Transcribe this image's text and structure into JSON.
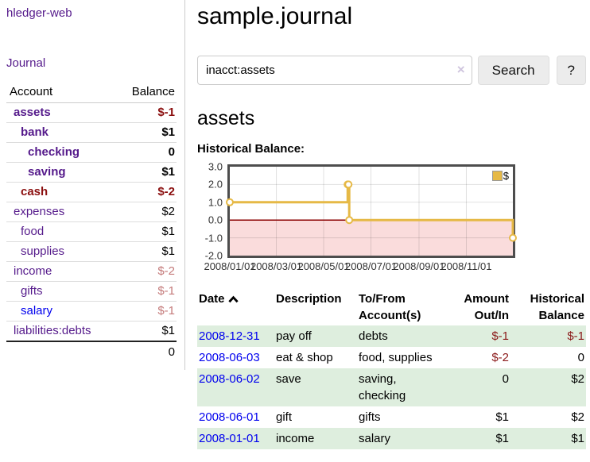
{
  "app": {
    "brand": "hledger-web",
    "nav_journal": "Journal"
  },
  "colors": {
    "link_visited_purple": "#551a8b",
    "link_blue": "#0000ee",
    "negative_strong": "#8b0f0f",
    "negative_soft": "#c47a7a",
    "row_green": "#deeede",
    "series_gold": "#e6b946",
    "chart_negative_bg": "#fadcdc",
    "zero_line": "#8b0000"
  },
  "sidebar": {
    "header": {
      "account": "Account",
      "balance": "Balance"
    },
    "accounts": [
      {
        "name": "assets",
        "depth": 1,
        "balance": "$-1",
        "bold": true,
        "name_tone": "purple",
        "balance_tone": "negative"
      },
      {
        "name": "bank",
        "depth": 2,
        "balance": "$1",
        "bold": true,
        "name_tone": "purple",
        "balance_tone": "positive"
      },
      {
        "name": "checking",
        "depth": 3,
        "balance": "0",
        "bold": true,
        "name_tone": "purple",
        "balance_tone": "positive"
      },
      {
        "name": "saving",
        "depth": 3,
        "balance": "$1",
        "bold": true,
        "name_tone": "purple",
        "balance_tone": "positive"
      },
      {
        "name": "cash",
        "depth": 2,
        "balance": "$-2",
        "bold": true,
        "name_tone": "maroon",
        "balance_tone": "negative"
      },
      {
        "name": "expenses",
        "depth": 1,
        "balance": "$2",
        "bold": false,
        "name_tone": "purple",
        "balance_tone": "positive"
      },
      {
        "name": "food",
        "depth": 2,
        "balance": "$1",
        "bold": false,
        "name_tone": "purple",
        "balance_tone": "positive"
      },
      {
        "name": "supplies",
        "depth": 2,
        "balance": "$1",
        "bold": false,
        "name_tone": "purple",
        "balance_tone": "positive"
      },
      {
        "name": "income",
        "depth": 1,
        "balance": "$-2",
        "bold": false,
        "name_tone": "purple",
        "balance_tone": "negative-soft"
      },
      {
        "name": "gifts",
        "depth": 2,
        "balance": "$-1",
        "bold": false,
        "name_tone": "purple",
        "balance_tone": "negative-soft"
      },
      {
        "name": "salary",
        "depth": 2,
        "balance": "$-1",
        "bold": false,
        "name_tone": "blue",
        "balance_tone": "negative-soft"
      },
      {
        "name": "liabilities:debts",
        "depth": 1,
        "balance": "$1",
        "bold": false,
        "name_tone": "purple",
        "balance_tone": "positive"
      }
    ],
    "total": "0"
  },
  "main": {
    "title": "sample.journal",
    "search": {
      "value": "inacct:assets",
      "clear_icon": "×",
      "button_label": "Search",
      "help_label": "?"
    },
    "account_heading": "assets"
  },
  "chart_data": {
    "type": "line",
    "step": true,
    "title": "Historical Balance:",
    "legend": [
      {
        "label": "$",
        "color": "#e6b946"
      }
    ],
    "legend_position": "top-right",
    "grid": true,
    "ylim": [
      -2,
      3
    ],
    "y_ticks": [
      {
        "label": "3.0",
        "value": 3
      },
      {
        "label": "2.0",
        "value": 2
      },
      {
        "label": "1.0",
        "value": 1
      },
      {
        "label": "0.0",
        "value": 0
      },
      {
        "label": "-1.0",
        "value": -1
      },
      {
        "label": "-2.0",
        "value": -2
      }
    ],
    "y_gridlines": [
      2,
      1,
      -1
    ],
    "x_range_days": [
      0,
      365
    ],
    "x_ticks": [
      {
        "label": "2008/01/01",
        "day": 0
      },
      {
        "label": "2008/03/01",
        "day": 60
      },
      {
        "label": "2008/05/01",
        "day": 121
      },
      {
        "label": "2008/07/01",
        "day": 182
      },
      {
        "label": "2008/09/01",
        "day": 244
      },
      {
        "label": "2008/11/01",
        "day": 305
      }
    ],
    "points": [
      {
        "date": "2008-01-01",
        "day": 0,
        "value": 1
      },
      {
        "date": "2008-06-01",
        "day": 152,
        "value": 2
      },
      {
        "date": "2008-06-02",
        "day": 153,
        "value": 2
      },
      {
        "date": "2008-06-03",
        "day": 154,
        "value": 0
      },
      {
        "date": "2008-12-31",
        "day": 365,
        "value": -1
      }
    ],
    "series_color": "#e6b946",
    "marker_fill": "#ffffff",
    "negative_region_color": "#fadcdc",
    "zero_line_color": "#8b0000",
    "border_color": "#4d4d4d"
  },
  "register": {
    "headers": {
      "date": "Date",
      "description": "Description",
      "accounts": "To/From Account(s)",
      "amount": "Amount Out/In",
      "balance": "Historical Balance"
    },
    "sort": {
      "column": "date",
      "direction": "ascending"
    },
    "rows": [
      {
        "date": "2008-12-31",
        "description": "pay off",
        "accounts": "debts",
        "amount": "$-1",
        "balance": "$-1"
      },
      {
        "date": "2008-06-03",
        "description": "eat & shop",
        "accounts": "food, supplies",
        "amount": "$-2",
        "balance": "0"
      },
      {
        "date": "2008-06-02",
        "description": "save",
        "accounts": "saving, checking",
        "amount": "0",
        "balance": "$2"
      },
      {
        "date": "2008-06-01",
        "description": "gift",
        "accounts": "gifts",
        "amount": "$1",
        "balance": "$2"
      },
      {
        "date": "2008-01-01",
        "description": "income",
        "accounts": "salary",
        "amount": "$1",
        "balance": "$1"
      }
    ]
  }
}
